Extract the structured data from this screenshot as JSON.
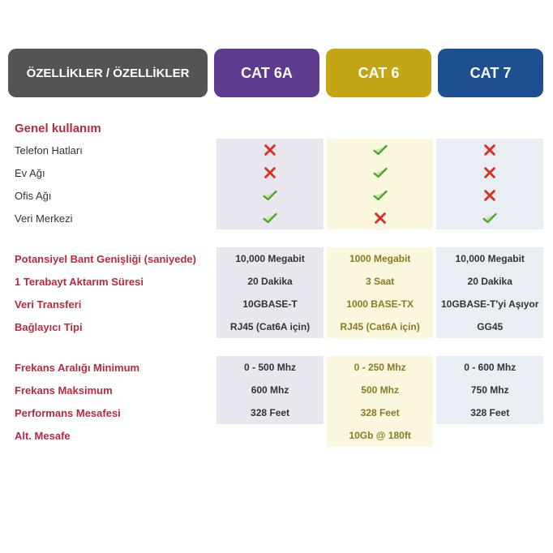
{
  "headers": {
    "features": "ÖZELLİKLER / ÖZELLİKLER",
    "col_a": "CAT 6A",
    "col_b": "CAT 6",
    "col_c": "CAT 7",
    "color_features": "#545454",
    "color_a": "#5d3b8f",
    "color_b": "#c4a516",
    "color_c": "#1d4f91"
  },
  "icons": {
    "check_stroke": "#4ea82e",
    "check_fill": "#c6e8a8",
    "cross_stroke": "#d93025"
  },
  "section1": {
    "title": "Genel kullanım",
    "rows": [
      {
        "label": "Telefon Hatları",
        "a": "cross",
        "b": "check",
        "c": "cross"
      },
      {
        "label": "Ev Ağı",
        "a": "cross",
        "b": "check",
        "c": "cross"
      },
      {
        "label": "Ofis Ağı",
        "a": "check",
        "b": "check",
        "c": "cross"
      },
      {
        "label": "Veri Merkezi",
        "a": "check",
        "b": "cross",
        "c": "check"
      }
    ]
  },
  "section2": {
    "rows": [
      {
        "label": "Potansiyel Bant Genişliği (saniyede)",
        "a": "10,000 Megabit",
        "b": "1000 Megabit",
        "c": "10,000 Megabit"
      },
      {
        "label": "1 Terabayt Aktarım Süresi",
        "a": "20 Dakika",
        "b": "3 Saat",
        "c": "20 Dakika"
      },
      {
        "label": "Veri Transferi",
        "a": "10GBASE-T",
        "b": "1000 BASE-TX",
        "c": "10GBASE-T'yi Aşıyor"
      },
      {
        "label": "Bağlayıcı Tipi",
        "a": "RJ45 (Cat6A için)",
        "b": "RJ45 (Cat6A için)",
        "c": "GG45"
      }
    ]
  },
  "section3": {
    "rows": [
      {
        "label": "Frekans Aralığı Minimum",
        "a": "0 - 500 Mhz",
        "b": "0 - 250 Mhz",
        "c": "0 - 600 Mhz"
      },
      {
        "label": "Frekans Maksimum",
        "a": "600 Mhz",
        "b": "500 Mhz",
        "c": "750 Mhz"
      },
      {
        "label": "Performans Mesafesi",
        "a": "328 Feet",
        "b": "328 Feet",
        "c": "328 Feet"
      },
      {
        "label": "Alt. Mesafe",
        "a": "",
        "b": "10Gb @ 180ft",
        "c": ""
      }
    ]
  }
}
